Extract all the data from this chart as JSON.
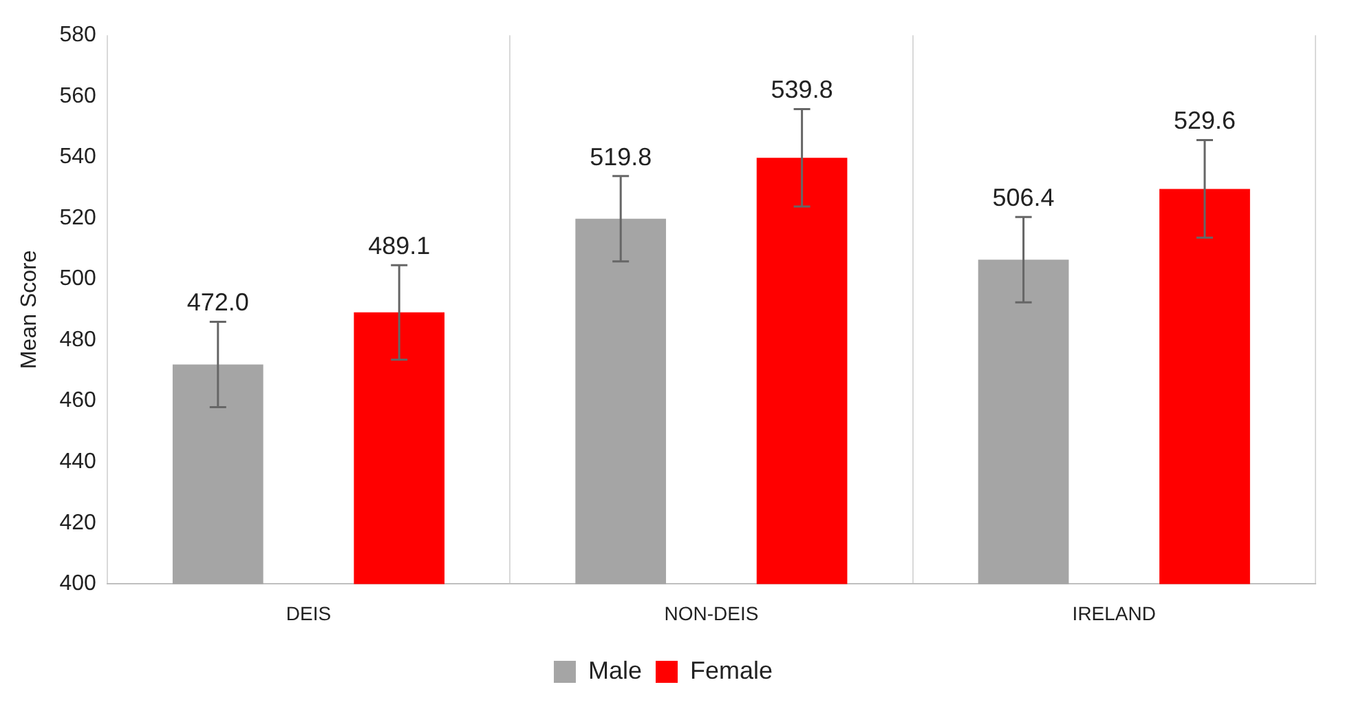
{
  "chart_data": {
    "type": "bar",
    "ylabel": "Mean Score",
    "categories": [
      "DEIS",
      "NON-DEIS",
      "IRELAND"
    ],
    "series": [
      {
        "name": "Male",
        "color": "#a5a5a5",
        "values": [
          472.0,
          519.8,
          506.4
        ],
        "value_labels": [
          "472.0",
          "519.8",
          "506.4"
        ],
        "errors": [
          14,
          14,
          14
        ]
      },
      {
        "name": "Female",
        "color": "#ff0000",
        "values": [
          489.1,
          539.8,
          529.6
        ],
        "value_labels": [
          "489.1",
          "539.8",
          "529.6"
        ],
        "errors": [
          15.5,
          16,
          16
        ]
      }
    ],
    "ylim": [
      400,
      580
    ],
    "yticks": [
      400,
      420,
      440,
      460,
      480,
      500,
      520,
      540,
      560,
      580
    ],
    "grid": "x",
    "legend": "bottom"
  }
}
